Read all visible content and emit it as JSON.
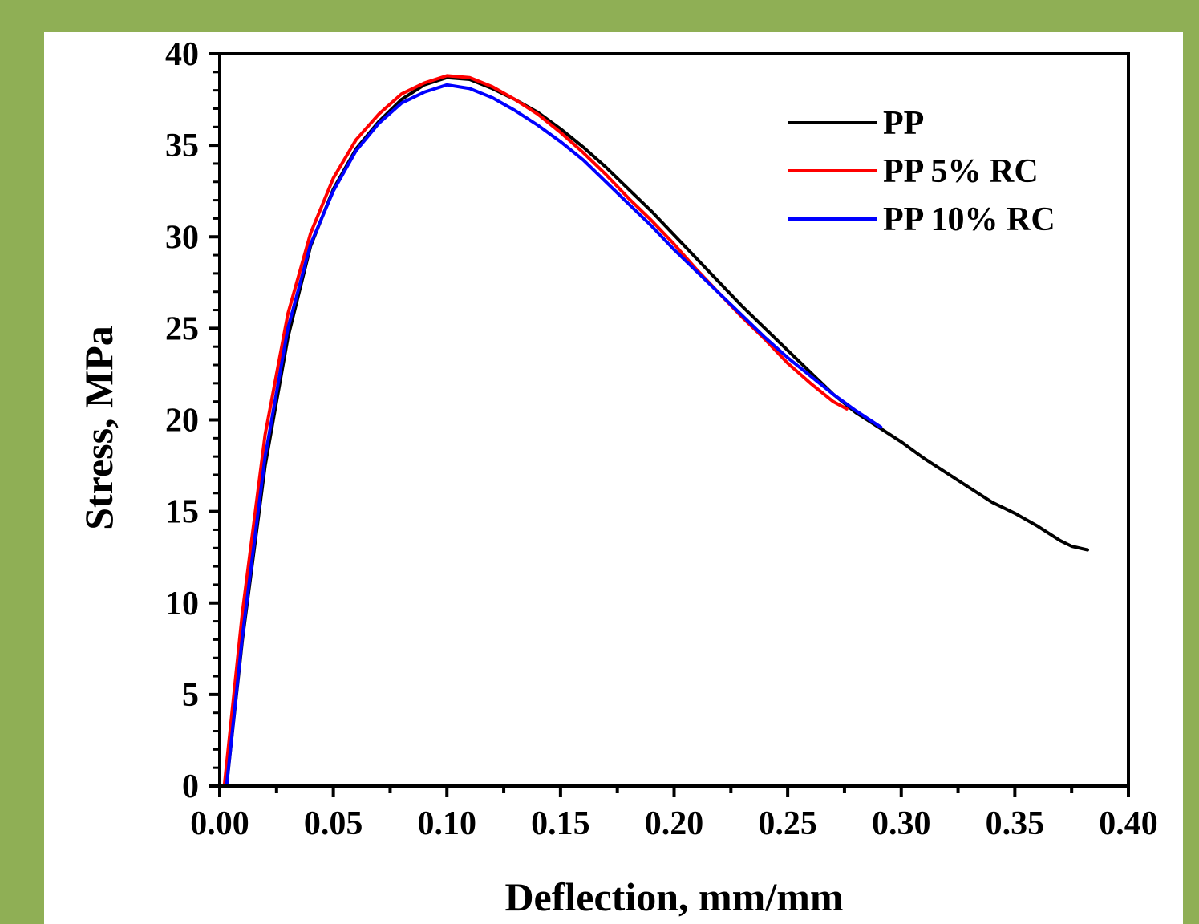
{
  "colors": {
    "background": "#8faf55",
    "panel": "#ffffff",
    "axis": "#000000"
  },
  "chart_data": {
    "type": "line",
    "xlabel": "Deflection, mm/mm",
    "ylabel": "Stress, MPa",
    "xlim": [
      0,
      0.4
    ],
    "ylim": [
      0,
      40
    ],
    "x_ticks": [
      "0.00",
      "0.05",
      "0.10",
      "0.15",
      "0.20",
      "0.25",
      "0.30",
      "0.35",
      "0.40"
    ],
    "y_ticks": [
      "0",
      "5",
      "10",
      "15",
      "20",
      "25",
      "30",
      "35",
      "40"
    ],
    "legend_position": "top-right",
    "series": [
      {
        "name": "PP",
        "color": "#000000",
        "x": [
          0.003,
          0.01,
          0.02,
          0.03,
          0.04,
          0.05,
          0.06,
          0.07,
          0.08,
          0.09,
          0.1,
          0.11,
          0.12,
          0.13,
          0.14,
          0.15,
          0.16,
          0.17,
          0.18,
          0.19,
          0.2,
          0.21,
          0.22,
          0.23,
          0.24,
          0.25,
          0.26,
          0.27,
          0.28,
          0.29,
          0.3,
          0.31,
          0.32,
          0.33,
          0.34,
          0.35,
          0.36,
          0.37,
          0.375,
          0.382
        ],
        "y": [
          0,
          8.0,
          17.5,
          24.5,
          29.5,
          32.6,
          34.8,
          36.3,
          37.5,
          38.3,
          38.7,
          38.6,
          38.1,
          37.5,
          36.8,
          35.9,
          34.9,
          33.8,
          32.6,
          31.4,
          30.1,
          28.8,
          27.5,
          26.2,
          25.0,
          23.8,
          22.6,
          21.4,
          20.4,
          19.6,
          18.8,
          17.9,
          17.1,
          16.3,
          15.5,
          14.9,
          14.2,
          13.4,
          13.1,
          12.9
        ]
      },
      {
        "name": "PP 5% RC",
        "color": "#ff0000",
        "x": [
          0.002,
          0.01,
          0.02,
          0.03,
          0.04,
          0.05,
          0.06,
          0.07,
          0.08,
          0.09,
          0.1,
          0.11,
          0.12,
          0.13,
          0.14,
          0.15,
          0.16,
          0.17,
          0.18,
          0.19,
          0.2,
          0.21,
          0.22,
          0.23,
          0.24,
          0.25,
          0.26,
          0.27,
          0.276
        ],
        "y": [
          0,
          9.5,
          19.2,
          25.8,
          30.2,
          33.2,
          35.3,
          36.7,
          37.8,
          38.4,
          38.8,
          38.7,
          38.2,
          37.5,
          36.7,
          35.7,
          34.6,
          33.4,
          32.1,
          30.9,
          29.6,
          28.2,
          26.9,
          25.6,
          24.4,
          23.1,
          22.0,
          21.0,
          20.6
        ]
      },
      {
        "name": "PP 10% RC",
        "color": "#0000ff",
        "x": [
          0.003,
          0.01,
          0.02,
          0.03,
          0.04,
          0.05,
          0.06,
          0.07,
          0.08,
          0.09,
          0.1,
          0.11,
          0.12,
          0.13,
          0.14,
          0.15,
          0.16,
          0.17,
          0.18,
          0.19,
          0.2,
          0.21,
          0.22,
          0.23,
          0.24,
          0.25,
          0.26,
          0.27,
          0.28,
          0.291
        ],
        "y": [
          0,
          8.2,
          18.0,
          25.0,
          29.6,
          32.5,
          34.7,
          36.2,
          37.3,
          37.9,
          38.3,
          38.1,
          37.6,
          36.9,
          36.1,
          35.2,
          34.2,
          33.0,
          31.8,
          30.6,
          29.3,
          28.1,
          26.9,
          25.7,
          24.5,
          23.4,
          22.4,
          21.4,
          20.5,
          19.6
        ]
      }
    ]
  }
}
